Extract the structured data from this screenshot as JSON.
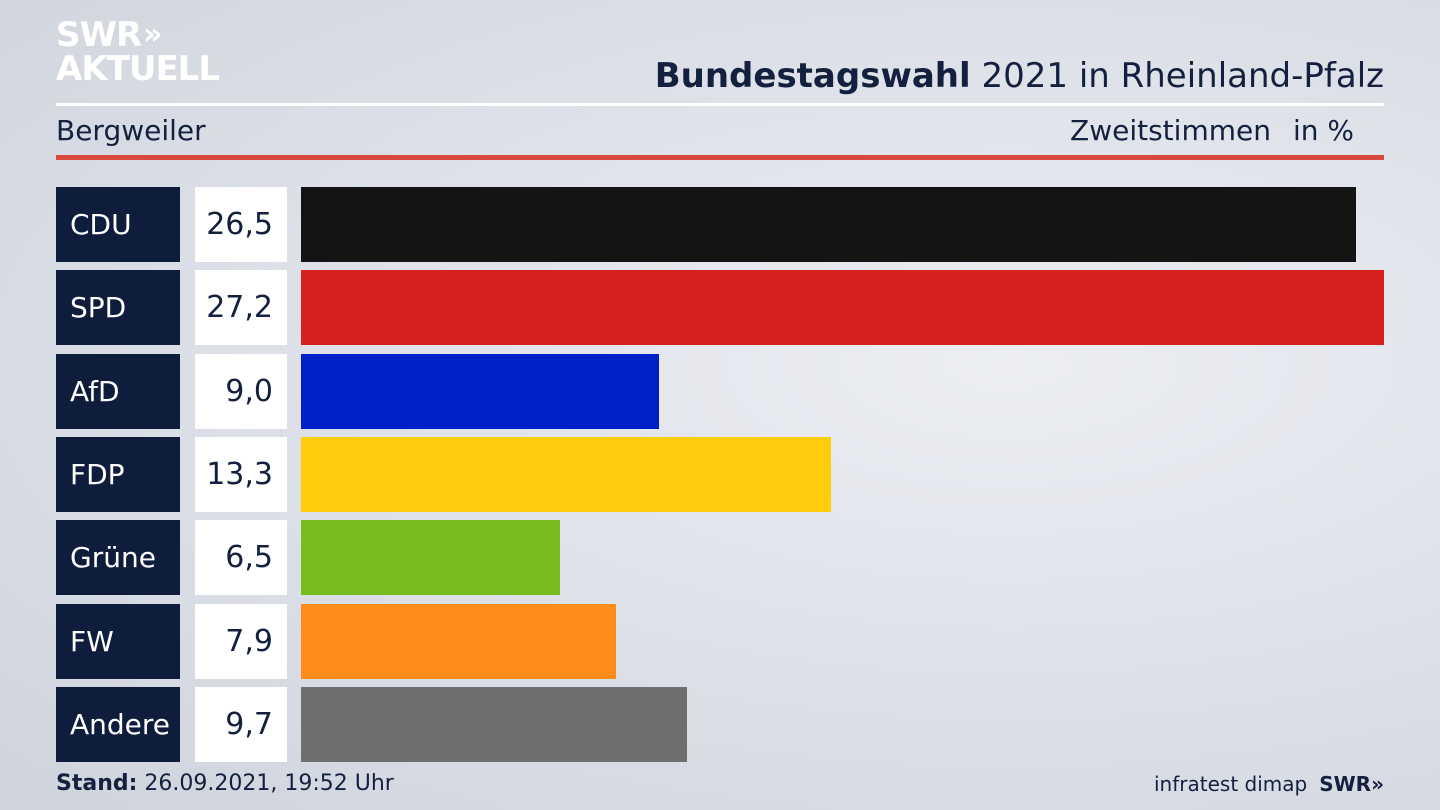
{
  "logo": {
    "line1": "SWR",
    "line2": "AKTUELL",
    "chevrons": "»"
  },
  "header": {
    "title_bold": "Bundestagswahl",
    "title_rest": "2021 in Rheinland-Pfalz",
    "location": "Bergweiler",
    "measure": "Zweitstimmen",
    "unit": "in %"
  },
  "chart_data": {
    "type": "bar",
    "orientation": "horizontal",
    "categories": [
      "CDU",
      "SPD",
      "AfD",
      "FDP",
      "Grüne",
      "FW",
      "Andere"
    ],
    "values": [
      26.5,
      27.2,
      9.0,
      13.3,
      6.5,
      7.9,
      9.7
    ],
    "value_labels": [
      "26,5",
      "27,2",
      "9,0",
      "13,3",
      "6,5",
      "7,9",
      "9,7"
    ],
    "colors": [
      "#141414",
      "#d8201e",
      "#0021c8",
      "#fecd0c",
      "#77bc1f",
      "#ff8c19",
      "#6f6f6f"
    ],
    "xlim": [
      0,
      27.2
    ]
  },
  "footer": {
    "stand_label": "Stand:",
    "stand_value": "26.09.2021, 19:52 Uhr",
    "source": "infratest dimap",
    "brand": "SWR",
    "brand_chevrons": "»"
  }
}
